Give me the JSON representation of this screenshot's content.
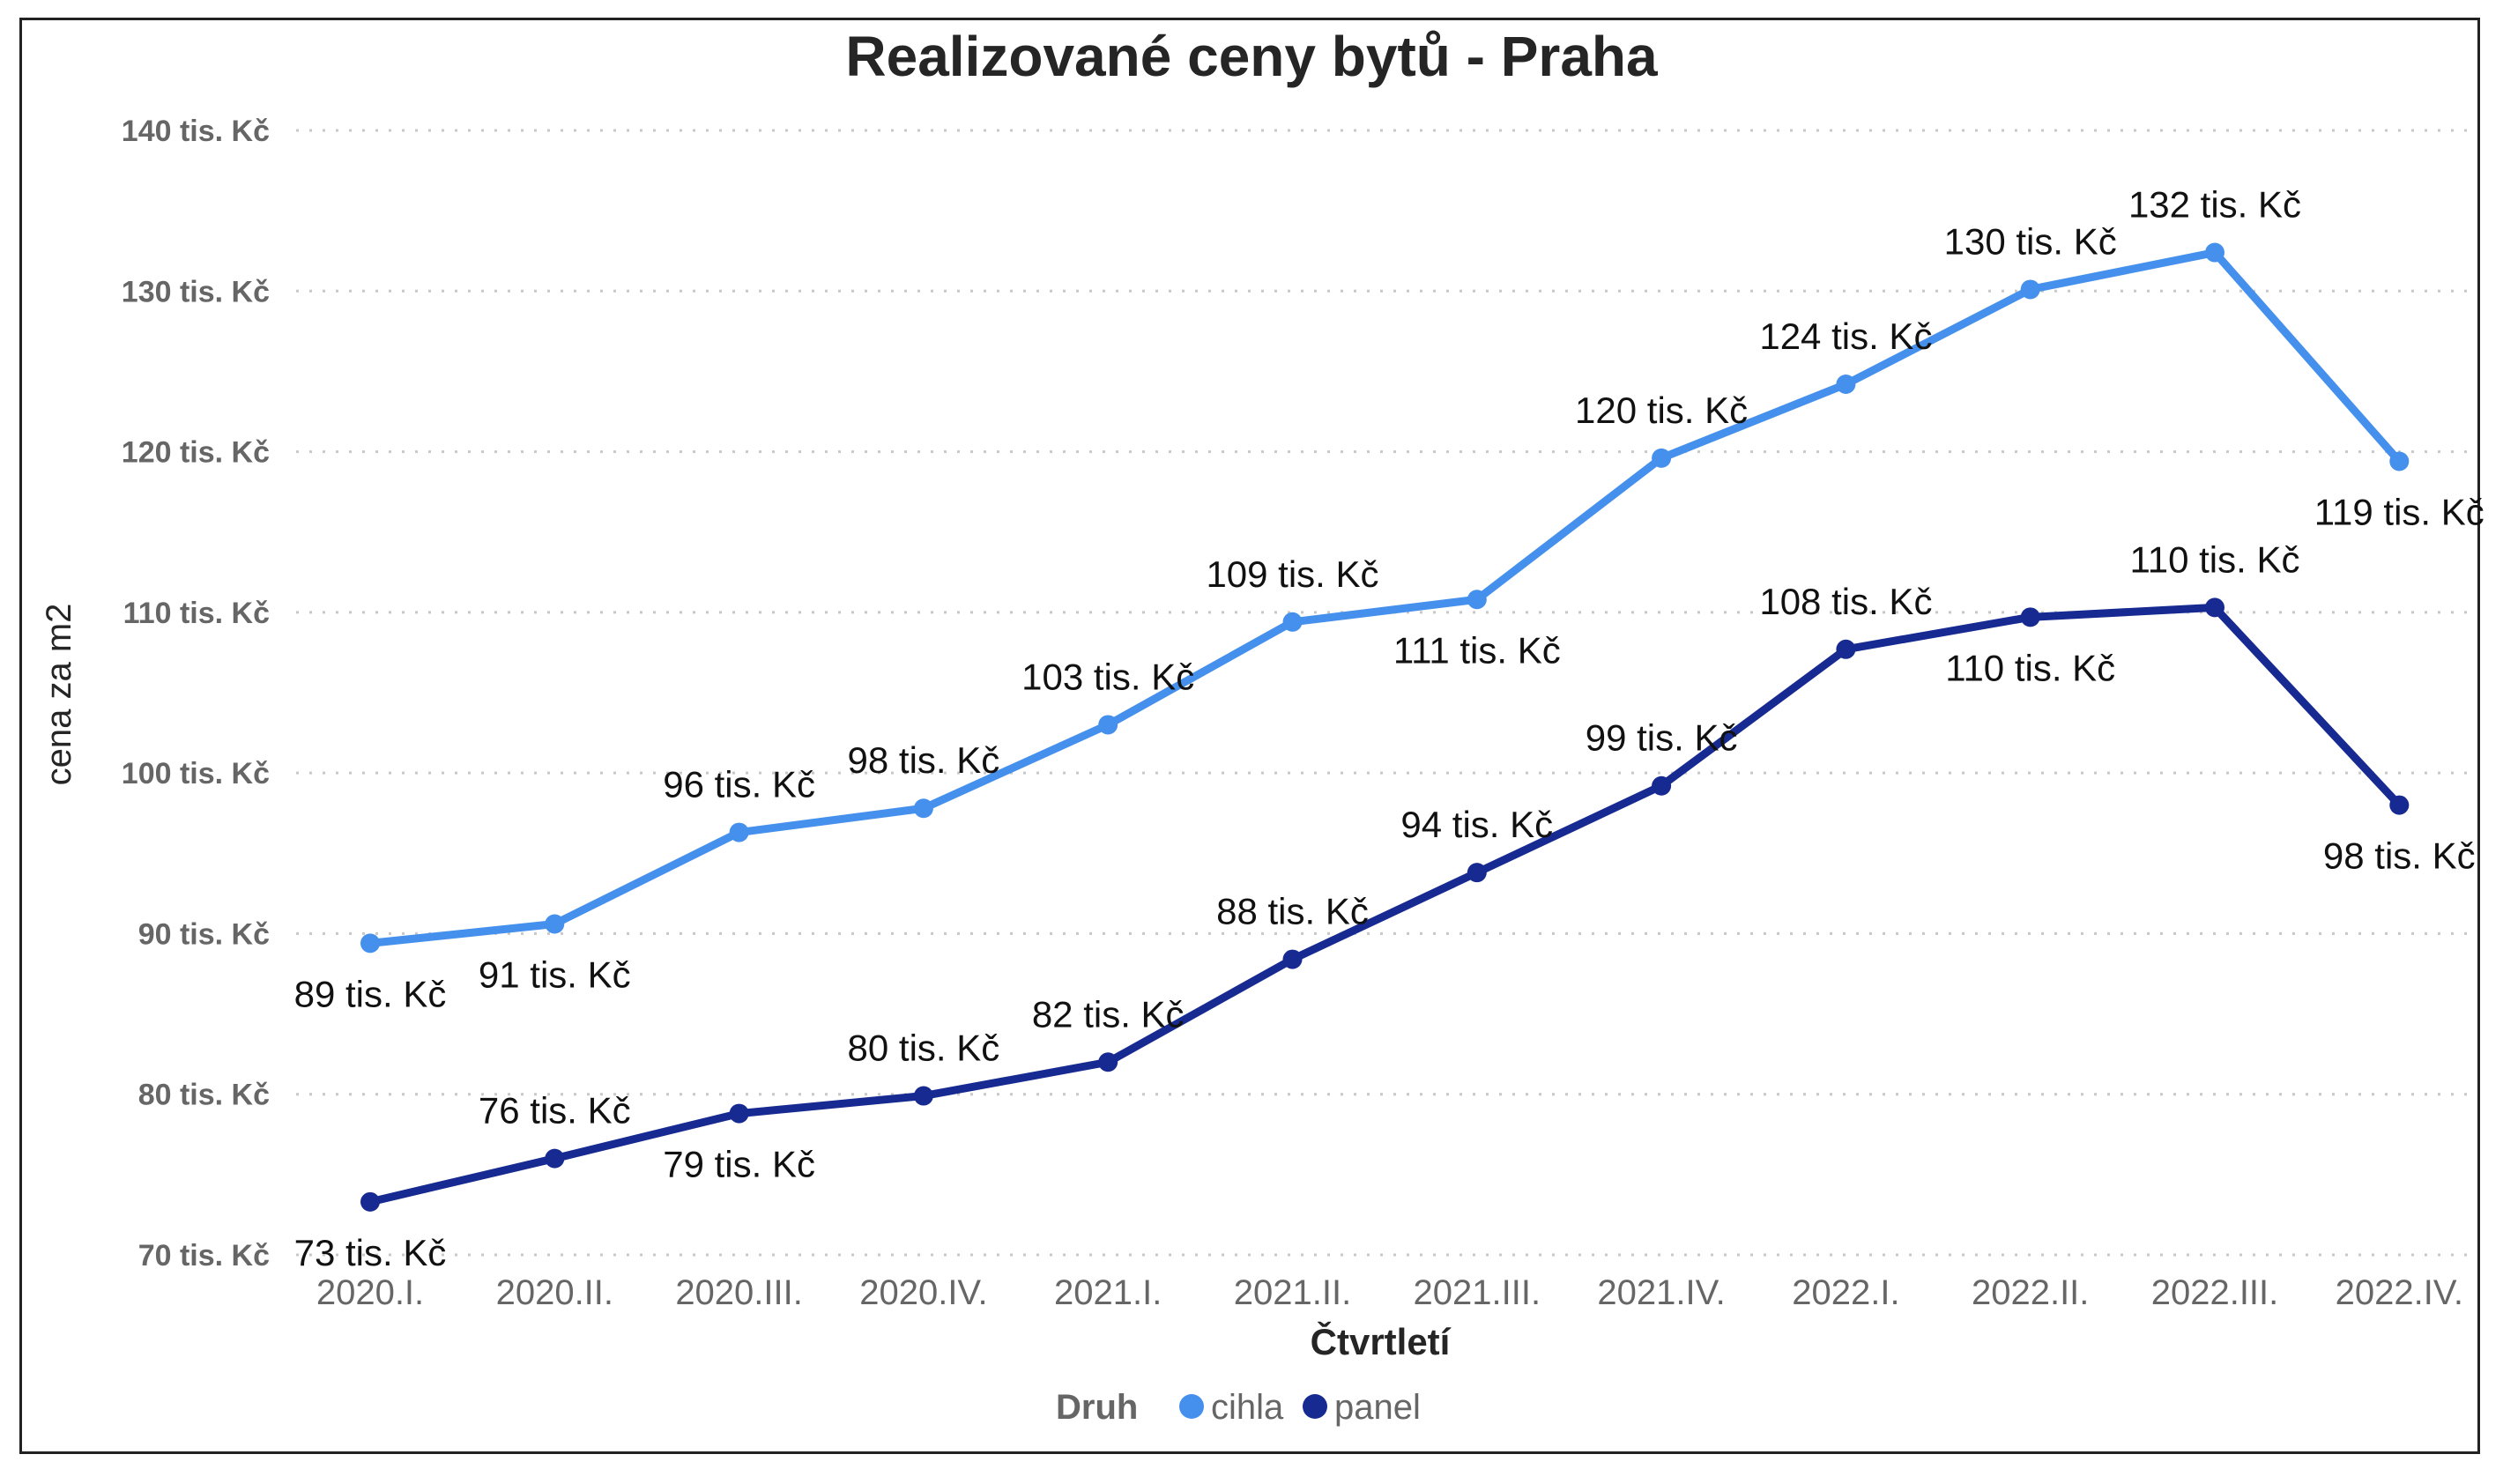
{
  "chart_data": {
    "type": "line",
    "title": "Realizované ceny bytů - Praha",
    "xlabel": "Čtvrtletí",
    "ylabel": "cena za m2",
    "ylim": [
      70,
      140
    ],
    "yticks": [
      {
        "value": 70,
        "label": "70 tis. Kč"
      },
      {
        "value": 80,
        "label": "80 tis. Kč"
      },
      {
        "value": 90,
        "label": "90 tis. Kč"
      },
      {
        "value": 100,
        "label": "100 tis. Kč"
      },
      {
        "value": 110,
        "label": "110 tis. Kč"
      },
      {
        "value": 120,
        "label": "120 tis. Kč"
      },
      {
        "value": 130,
        "label": "130 tis. Kč"
      },
      {
        "value": 140,
        "label": "140 tis. Kč"
      }
    ],
    "grid": true,
    "categories": [
      "2020.I.",
      "2020.II.",
      "2020.III.",
      "2020.IV.",
      "2021.I.",
      "2021.II.",
      "2021.III.",
      "2021.IV.",
      "2022.I.",
      "2022.II.",
      "2022.III.",
      "2022.IV."
    ],
    "legend": {
      "title": "Druh",
      "position": "bottom-center"
    },
    "series": [
      {
        "name": "cihla",
        "color": "#4590ed",
        "values": [
          89.4,
          90.6,
          96.3,
          97.8,
          103.0,
          109.4,
          110.8,
          119.6,
          124.2,
          130.1,
          132.4,
          119.4
        ],
        "labels": [
          "89 tis. Kč",
          "91 tis. Kč",
          "96 tis. Kč",
          "98 tis. Kč",
          "103 tis. Kč",
          "109 tis. Kč",
          "111 tis. Kč",
          "120 tis. Kč",
          "124 tis. Kč",
          "130 tis. Kč",
          "132 tis. Kč",
          "119 tis. Kč"
        ],
        "label_side": [
          "below",
          "below",
          "above",
          "above",
          "above",
          "above",
          "below",
          "above",
          "above",
          "above",
          "above",
          "below"
        ]
      },
      {
        "name": "panel",
        "color": "#172a91",
        "values": [
          73.3,
          76.0,
          78.8,
          79.9,
          82.0,
          88.4,
          93.8,
          99.2,
          107.7,
          109.7,
          110.3,
          98.0
        ],
        "labels": [
          "73 tis. Kč",
          "76 tis. Kč",
          "79 tis. Kč",
          "80 tis. Kč",
          "82 tis. Kč",
          "88 tis. Kč",
          "94 tis. Kč",
          "99 tis. Kč",
          "108 tis. Kč",
          "110 tis. Kč",
          "110 tis. Kč",
          "98 tis. Kč"
        ],
        "label_side": [
          "below",
          "above",
          "below",
          "above",
          "above",
          "above",
          "above",
          "above",
          "above",
          "below",
          "above",
          "below"
        ]
      }
    ]
  }
}
